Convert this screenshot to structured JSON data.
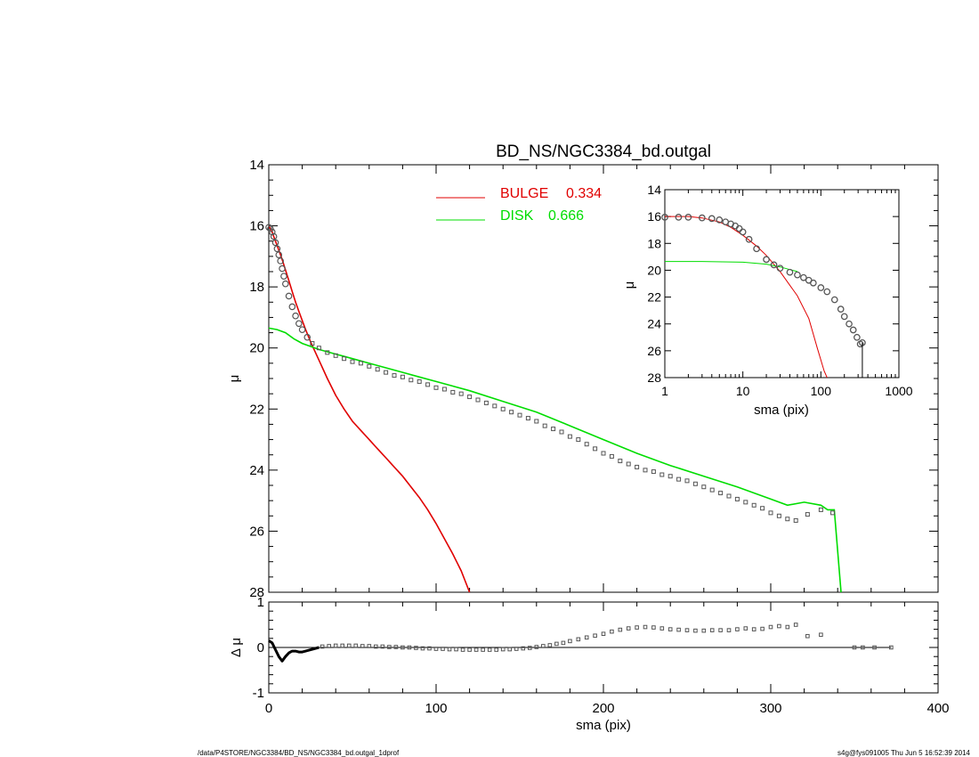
{
  "footer": {
    "path": "/data/P4STORE/NGC3384/BD_NS/NGC3384_bd.outgal_1dprof",
    "stamp": "s4g@fys091005  Thu Jun  5 16:52:39 2014"
  },
  "colors": {
    "bulge": "#e00000",
    "disk": "#00dd00",
    "data": "#555555",
    "axis": "#000000"
  },
  "chart_data": [
    {
      "id": "main",
      "type": "line",
      "title": "BD_NS/NGC3384_bd.outgal",
      "xlabel": "",
      "ylabel": "μ",
      "xlim": [
        0,
        400
      ],
      "ylim": [
        28,
        14
      ],
      "y_inverted": true,
      "yticks": [
        "14",
        "16",
        "18",
        "20",
        "22",
        "24",
        "26",
        "28"
      ],
      "legend": {
        "placement": "top-center",
        "entries": [
          {
            "label": "BULGE",
            "value": "0.334",
            "color": "#e00000"
          },
          {
            "label": "DISK",
            "value": "0.666",
            "color": "#00dd00"
          }
        ]
      },
      "series": [
        {
          "name": "BULGE",
          "color": "#e00000",
          "x": [
            0,
            1,
            2,
            3,
            4,
            5,
            6,
            8,
            10,
            12,
            14,
            16,
            18,
            20,
            22,
            25,
            30,
            35,
            40,
            45,
            50,
            55,
            60,
            65,
            70,
            75,
            80,
            85,
            90,
            95,
            100,
            105,
            110,
            115,
            120
          ],
          "y": [
            16.0,
            16.1,
            16.2,
            16.35,
            16.5,
            16.65,
            16.8,
            17.1,
            17.45,
            17.8,
            18.15,
            18.5,
            18.8,
            19.1,
            19.4,
            19.8,
            20.4,
            21.0,
            21.55,
            22.0,
            22.4,
            22.7,
            23.0,
            23.3,
            23.6,
            23.9,
            24.2,
            24.55,
            24.9,
            25.3,
            25.75,
            26.25,
            26.75,
            27.3,
            28.0
          ]
        },
        {
          "name": "DISK",
          "color": "#00dd00",
          "x": [
            0,
            5,
            10,
            15,
            20,
            25,
            30,
            40,
            50,
            60,
            70,
            80,
            90,
            100,
            120,
            140,
            160,
            180,
            200,
            220,
            240,
            260,
            280,
            300,
            310,
            320,
            330,
            334,
            338,
            342
          ],
          "y": [
            19.35,
            19.4,
            19.5,
            19.7,
            19.85,
            19.95,
            20.05,
            20.2,
            20.35,
            20.5,
            20.65,
            20.8,
            20.95,
            21.1,
            21.4,
            21.75,
            22.1,
            22.55,
            23.0,
            23.45,
            23.85,
            24.2,
            24.55,
            24.95,
            25.15,
            25.05,
            25.15,
            25.3,
            25.3,
            28.0
          ]
        },
        {
          "name": "",
          "style": "data-points",
          "color": "#555555",
          "x": [
            0,
            1,
            2,
            3,
            4,
            5,
            6,
            7,
            8,
            9,
            10,
            12,
            14,
            16,
            18,
            20,
            23,
            26,
            30,
            35,
            40,
            45,
            50,
            55,
            60,
            65,
            70,
            75,
            80,
            85,
            90,
            95,
            100,
            105,
            110,
            115,
            120,
            125,
            130,
            135,
            140,
            145,
            150,
            155,
            160,
            165,
            170,
            175,
            180,
            185,
            190,
            195,
            200,
            205,
            210,
            215,
            220,
            225,
            230,
            235,
            240,
            245,
            250,
            255,
            260,
            265,
            270,
            275,
            280,
            285,
            290,
            295,
            300,
            305,
            310,
            315,
            322,
            330,
            337
          ],
          "y": [
            16.05,
            16.1,
            16.2,
            16.35,
            16.55,
            16.75,
            16.95,
            17.15,
            17.4,
            17.65,
            17.9,
            18.3,
            18.65,
            18.95,
            19.2,
            19.4,
            19.65,
            19.85,
            20.0,
            20.15,
            20.25,
            20.35,
            20.45,
            20.5,
            20.6,
            20.7,
            20.8,
            20.9,
            20.95,
            21.05,
            21.1,
            21.2,
            21.3,
            21.35,
            21.45,
            21.5,
            21.6,
            21.7,
            21.8,
            21.9,
            22.0,
            22.1,
            22.2,
            22.3,
            22.4,
            22.55,
            22.65,
            22.75,
            22.9,
            23.0,
            23.15,
            23.3,
            23.45,
            23.55,
            23.7,
            23.8,
            23.9,
            24.0,
            24.05,
            24.15,
            24.2,
            24.3,
            24.35,
            24.45,
            24.55,
            24.65,
            24.75,
            24.85,
            24.95,
            25.05,
            25.15,
            25.25,
            25.4,
            25.5,
            25.6,
            25.65,
            25.45,
            25.3,
            25.4
          ]
        }
      ]
    },
    {
      "id": "inset",
      "type": "line",
      "xlabel": "sma (pix)",
      "ylabel": "μ",
      "xscale": "log",
      "xlim": [
        1,
        1000
      ],
      "ylim": [
        28,
        14
      ],
      "y_inverted": true,
      "xticks": [
        "1",
        "10",
        "100",
        "1000"
      ],
      "yticks": [
        "14",
        "16",
        "18",
        "20",
        "22",
        "24",
        "26",
        "28"
      ],
      "series": [
        {
          "name": "BULGE",
          "color": "#e00000",
          "x": [
            1,
            2,
            3,
            5,
            7,
            10,
            15,
            20,
            30,
            50,
            70,
            90,
            110,
            120
          ],
          "y": [
            16.0,
            16.0,
            16.1,
            16.4,
            16.8,
            17.4,
            18.2,
            18.9,
            20.1,
            21.9,
            23.6,
            25.8,
            27.5,
            28.0
          ]
        },
        {
          "name": "DISK",
          "color": "#00dd00",
          "x": [
            1,
            3,
            10,
            20,
            30,
            40,
            50
          ],
          "y": [
            19.35,
            19.35,
            19.4,
            19.55,
            19.75,
            19.95,
            20.1
          ]
        },
        {
          "name": "",
          "style": "data-points",
          "color": "#555555",
          "x": [
            1,
            1.5,
            2,
            3,
            4,
            5,
            6,
            7,
            8,
            9,
            10,
            12,
            15,
            20,
            25,
            30,
            40,
            50,
            60,
            70,
            80,
            100,
            120,
            150,
            180,
            200,
            230,
            260,
            290,
            320,
            340
          ],
          "y": [
            16.05,
            16.05,
            16.05,
            16.1,
            16.15,
            16.25,
            16.4,
            16.55,
            16.7,
            16.9,
            17.15,
            17.7,
            18.4,
            19.2,
            19.6,
            19.85,
            20.15,
            20.35,
            20.55,
            20.75,
            20.95,
            21.3,
            21.6,
            22.2,
            22.9,
            23.45,
            24.0,
            24.45,
            25.0,
            25.5,
            25.4
          ]
        }
      ]
    },
    {
      "id": "residual",
      "type": "scatter",
      "xlabel": "sma (pix)",
      "ylabel": "Δ μ",
      "xlim": [
        0,
        400
      ],
      "ylim": [
        -1,
        1
      ],
      "xticks": [
        "0",
        "100",
        "200",
        "300",
        "400"
      ],
      "yticks": [
        "-1",
        "0",
        "1"
      ],
      "reference_line": 0,
      "series": [
        {
          "name": "",
          "style": "thick-line",
          "color": "#000000",
          "x": [
            0,
            2,
            4,
            6,
            8,
            10,
            12,
            14,
            16,
            18,
            20,
            22,
            24,
            26,
            28,
            30
          ],
          "y": [
            0.15,
            0.1,
            -0.05,
            -0.2,
            -0.3,
            -0.2,
            -0.12,
            -0.08,
            -0.08,
            -0.1,
            -0.1,
            -0.08,
            -0.06,
            -0.04,
            -0.02,
            0.0
          ]
        },
        {
          "name": "",
          "style": "data-points",
          "color": "#555555",
          "x": [
            32,
            36,
            40,
            44,
            48,
            52,
            56,
            60,
            64,
            68,
            72,
            76,
            80,
            84,
            88,
            92,
            96,
            100,
            104,
            108,
            112,
            116,
            120,
            124,
            128,
            132,
            136,
            140,
            144,
            148,
            152,
            156,
            160,
            164,
            168,
            172,
            176,
            180,
            185,
            190,
            195,
            200,
            205,
            210,
            215,
            220,
            225,
            230,
            235,
            240,
            245,
            250,
            255,
            260,
            265,
            270,
            275,
            280,
            285,
            290,
            295,
            300,
            305,
            310,
            315,
            322,
            330,
            350,
            355,
            362,
            372
          ],
          "y": [
            0.02,
            0.03,
            0.04,
            0.04,
            0.04,
            0.04,
            0.03,
            0.03,
            0.02,
            0.02,
            0.01,
            0.01,
            0.0,
            0.0,
            -0.01,
            -0.02,
            -0.02,
            -0.03,
            -0.03,
            -0.04,
            -0.04,
            -0.05,
            -0.05,
            -0.05,
            -0.05,
            -0.05,
            -0.05,
            -0.04,
            -0.04,
            -0.03,
            -0.02,
            -0.01,
            0.01,
            0.03,
            0.05,
            0.08,
            0.1,
            0.14,
            0.18,
            0.22,
            0.26,
            0.3,
            0.35,
            0.39,
            0.42,
            0.44,
            0.45,
            0.44,
            0.42,
            0.4,
            0.39,
            0.38,
            0.37,
            0.37,
            0.38,
            0.38,
            0.38,
            0.4,
            0.42,
            0.4,
            0.41,
            0.45,
            0.47,
            0.45,
            0.5,
            0.25,
            0.28,
            0.0,
            0.0,
            0.0,
            0.0
          ]
        }
      ]
    }
  ]
}
